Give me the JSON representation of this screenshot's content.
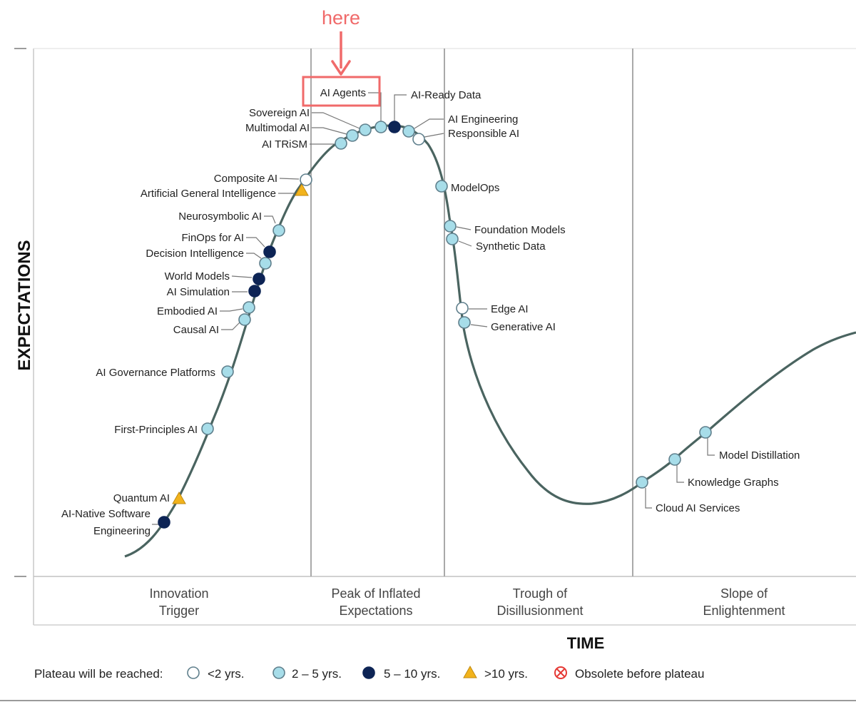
{
  "annotation": {
    "label": "here",
    "color": "#f06a6a",
    "target": "AI Agents"
  },
  "axes": {
    "y_label": "EXPECTATIONS",
    "x_label": "TIME"
  },
  "phases": [
    {
      "line1": "Innovation",
      "line2": "Trigger"
    },
    {
      "line1": "Peak of Inflated",
      "line2": "Expectations"
    },
    {
      "line1": "Trough of",
      "line2": "Disillusionment"
    },
    {
      "line1": "Slope of",
      "line2": "Enlightenment"
    }
  ],
  "legend": {
    "title": "Plateau will be reached:",
    "items": [
      {
        "label": "<2 yrs.",
        "marker": "circle",
        "fill": "#ffffff"
      },
      {
        "label": "2 – 5 yrs.",
        "marker": "circle",
        "fill": "#a7dde9"
      },
      {
        "label": "5 – 10 yrs.",
        "marker": "circle",
        "fill": "#0d2455"
      },
      {
        "label": ">10 yrs.",
        "marker": "triangle",
        "fill": "#f2b31c"
      },
      {
        "label": "Obsolete before plateau",
        "marker": "obsolete",
        "fill": "#e53935"
      }
    ]
  },
  "colors": {
    "curve": "#4a6460",
    "grid": "#a9a9a9",
    "marker_stroke": "#5f7f8c",
    "leader": "#777777"
  },
  "technologies": [
    {
      "name": "AI-Native Software Engineering",
      "lines": [
        "AI-Native Software",
        "Engineering"
      ],
      "plateau": "5 – 10 yrs.",
      "marker": "navy"
    },
    {
      "name": "Quantum AI",
      "lines": [
        "Quantum AI"
      ],
      "plateau": ">10 yrs.",
      "marker": "triangle"
    },
    {
      "name": "First-Principles AI",
      "lines": [
        "First-Principles AI"
      ],
      "plateau": "2 – 5 yrs.",
      "marker": "cyan"
    },
    {
      "name": "AI Governance Platforms",
      "lines": [
        "AI Governance Platforms"
      ],
      "plateau": "2 – 5 yrs.",
      "marker": "cyan"
    },
    {
      "name": "Causal AI",
      "lines": [
        "Causal AI"
      ],
      "plateau": "2 – 5 yrs.",
      "marker": "cyan"
    },
    {
      "name": "Embodied AI",
      "lines": [
        "Embodied AI"
      ],
      "plateau": "2 – 5 yrs.",
      "marker": "cyan"
    },
    {
      "name": "AI Simulation",
      "lines": [
        "AI Simulation"
      ],
      "plateau": "5 – 10 yrs.",
      "marker": "navy"
    },
    {
      "name": "World Models",
      "lines": [
        "World Models"
      ],
      "plateau": "5 – 10 yrs.",
      "marker": "navy"
    },
    {
      "name": "Decision Intelligence",
      "lines": [
        "Decision Intelligence"
      ],
      "plateau": "2 – 5 yrs.",
      "marker": "cyan"
    },
    {
      "name": "FinOps for AI",
      "lines": [
        "FinOps for AI"
      ],
      "plateau": "5 – 10 yrs.",
      "marker": "navy"
    },
    {
      "name": "Neurosymbolic AI",
      "lines": [
        "Neurosymbolic AI"
      ],
      "plateau": "2 – 5 yrs.",
      "marker": "cyan"
    },
    {
      "name": "Artificial General Intelligence",
      "lines": [
        "Artificial General Intelligence"
      ],
      "plateau": ">10 yrs.",
      "marker": "triangle"
    },
    {
      "name": "Composite AI",
      "lines": [
        "Composite AI"
      ],
      "plateau": "<2 yrs.",
      "marker": "white"
    },
    {
      "name": "AI TRiSM",
      "lines": [
        "AI TRiSM"
      ],
      "plateau": "2 – 5 yrs.",
      "marker": "cyan"
    },
    {
      "name": "Multimodal AI",
      "lines": [
        "Multimodal AI"
      ],
      "plateau": "2 – 5 yrs.",
      "marker": "cyan"
    },
    {
      "name": "Sovereign AI",
      "lines": [
        "Sovereign AI"
      ],
      "plateau": "2 – 5 yrs.",
      "marker": "cyan"
    },
    {
      "name": "AI Agents",
      "lines": [
        "AI Agents"
      ],
      "plateau": "2 – 5 yrs.",
      "marker": "cyan"
    },
    {
      "name": "AI-Ready Data",
      "lines": [
        "AI-Ready Data"
      ],
      "plateau": "5 – 10 yrs.",
      "marker": "navy"
    },
    {
      "name": "AI Engineering",
      "lines": [
        "AI Engineering"
      ],
      "plateau": "2 – 5 yrs.",
      "marker": "cyan"
    },
    {
      "name": "Responsible AI",
      "lines": [
        "Responsible AI"
      ],
      "plateau": "<2 yrs.",
      "marker": "white"
    },
    {
      "name": "ModelOps",
      "lines": [
        "ModelOps"
      ],
      "plateau": "2 – 5 yrs.",
      "marker": "cyan"
    },
    {
      "name": "Foundation Models",
      "lines": [
        "Foundation Models"
      ],
      "plateau": "2 – 5 yrs.",
      "marker": "cyan"
    },
    {
      "name": "Synthetic Data",
      "lines": [
        "Synthetic Data"
      ],
      "plateau": "2 – 5 yrs.",
      "marker": "cyan"
    },
    {
      "name": "Edge AI",
      "lines": [
        "Edge AI"
      ],
      "plateau": "<2 yrs.",
      "marker": "white"
    },
    {
      "name": "Generative AI",
      "lines": [
        "Generative AI"
      ],
      "plateau": "2 – 5 yrs.",
      "marker": "cyan"
    },
    {
      "name": "Cloud AI Services",
      "lines": [
        "Cloud AI Services"
      ],
      "plateau": "2 – 5 yrs.",
      "marker": "cyan"
    },
    {
      "name": "Knowledge Graphs",
      "lines": [
        "Knowledge Graphs"
      ],
      "plateau": "2 – 5 yrs.",
      "marker": "cyan"
    },
    {
      "name": "Model Distillation",
      "lines": [
        "Model Distillation"
      ],
      "plateau": "2 – 5 yrs.",
      "marker": "cyan"
    }
  ]
}
